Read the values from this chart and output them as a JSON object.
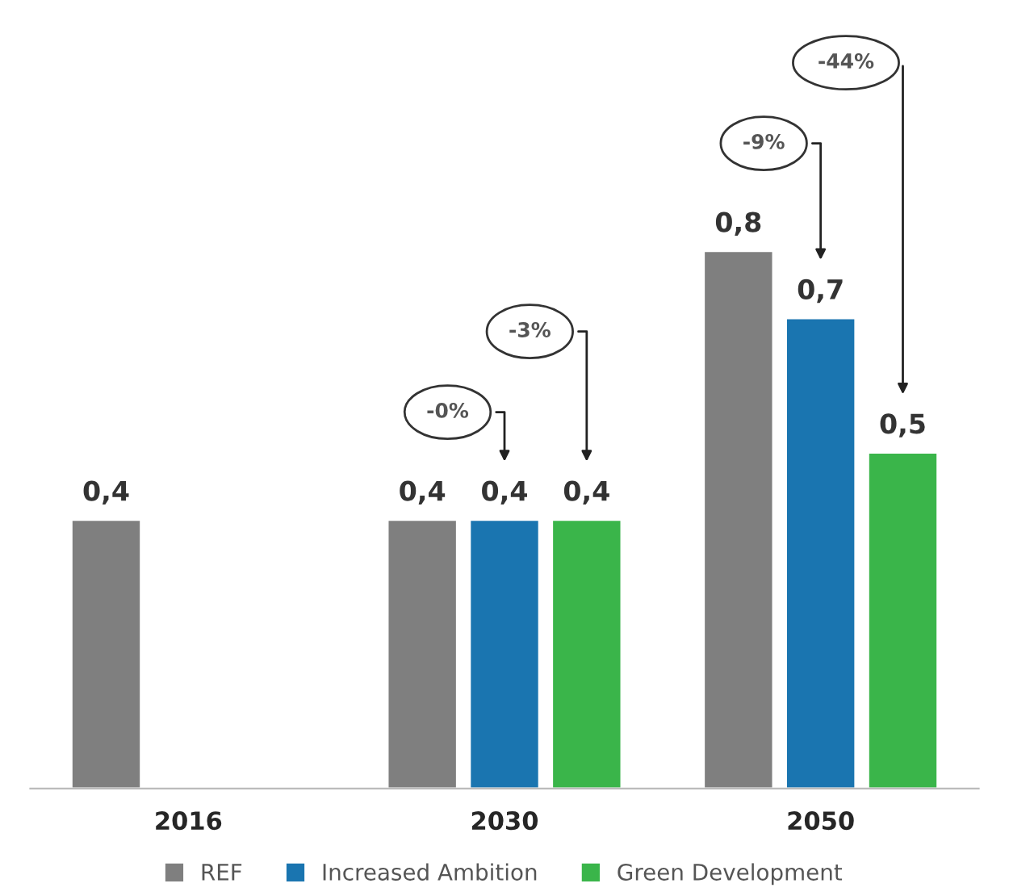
{
  "chart_data": {
    "type": "bar",
    "categories": [
      "2016",
      "2030",
      "2050"
    ],
    "series": [
      {
        "name": "REF",
        "color": "#7f7f7f",
        "values": [
          0.4,
          0.4,
          0.8
        ],
        "value_labels": [
          "0,4",
          "0,4",
          "0,8"
        ]
      },
      {
        "name": "Increased Ambition",
        "color": "#1a75b0",
        "values": [
          null,
          0.4,
          0.7
        ],
        "value_labels": [
          null,
          "0,4",
          "0,7"
        ]
      },
      {
        "name": "Green Development",
        "color": "#3ab54a",
        "values": [
          null,
          0.4,
          0.5
        ],
        "value_labels": [
          null,
          "0,4",
          "0,5"
        ]
      }
    ],
    "annotations": [
      "-0%",
      "-3%",
      "-9%",
      "-44%"
    ],
    "legend": "bottom",
    "grid": false
  }
}
